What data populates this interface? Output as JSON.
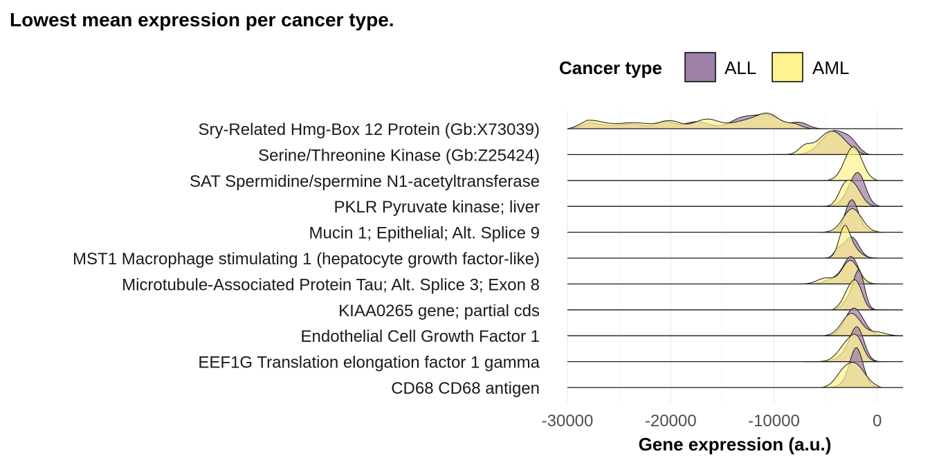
{
  "chart_data": {
    "type": "ridgeline",
    "title": "Lowest mean expression per cancer type.",
    "xlabel": "Gene expression (a.u.)",
    "ylabel": "",
    "xlim": [
      -30000,
      2500
    ],
    "xticks": [
      -30000,
      -20000,
      -10000,
      0
    ],
    "xtick_labels": [
      "-30000",
      "-20000",
      "-10000",
      "0"
    ],
    "grid": true,
    "legend": {
      "title": "Cancer type",
      "placement": "top-right",
      "entries": [
        {
          "name": "ALL",
          "color": "#9e7fa8"
        },
        {
          "name": "AML",
          "color": "#fff28f"
        }
      ]
    },
    "overlap_color": "#c8aa6a",
    "categories": [
      "Sry-Related Hmg-Box 12 Protein (Gb:X73039)",
      "Serine/Threonine Kinase (Gb:Z25424)",
      "SAT Spermidine/spermine N1-acetyltransferase",
      "PKLR Pyruvate kinase; liver",
      "Mucin 1; Epithelial; Alt. Splice 9",
      "MST1 Macrophage stimulating 1 (hepatocyte growth factor-like)",
      "Microtubule-Associated Protein Tau; Alt. Splice 3; Exon 8",
      "KIAA0265 gene; partial cds",
      "Endothelial Cell Growth Factor 1",
      "EEF1G Translation elongation factor 1 gamma",
      "CD68 CD68 antigen"
    ],
    "series": [
      {
        "name": "ALL",
        "color": "#9e7fa8",
        "ridges": [
          {
            "range": [
              -30000,
              -4000
            ],
            "peaks": [
              [
                -28000,
                1200,
                0.25
              ],
              [
                -24000,
                1500,
                0.2
              ],
              [
                -20500,
                800,
                0.3
              ],
              [
                -17500,
                1200,
                0.3
              ],
              [
                -13000,
                1200,
                0.45
              ],
              [
                -10500,
                1200,
                0.55
              ],
              [
                -7500,
                800,
                0.25
              ]
            ]
          },
          {
            "range": [
              -10000,
              -500
            ],
            "peaks": [
              [
                -4200,
                1200,
                1.0
              ],
              [
                -2500,
                700,
                0.35
              ]
            ]
          },
          {
            "range": [
              -3000,
              -1800
            ],
            "peaks": []
          },
          {
            "range": [
              -5500,
              500
            ],
            "peaks": [
              [
                -1800,
                700,
                1.3
              ],
              [
                -2800,
                700,
                0.35
              ]
            ]
          },
          {
            "range": [
              -5500,
              500
            ],
            "peaks": [
              [
                -2500,
                600,
                1.1
              ],
              [
                -2200,
                800,
                0.3
              ]
            ]
          },
          {
            "range": [
              -5000,
              0
            ],
            "peaks": [
              [
                -2500,
                700,
                0.9
              ],
              [
                -3800,
                400,
                0.3
              ]
            ]
          },
          {
            "range": [
              -7500,
              0
            ],
            "peaks": [
              [
                -2500,
                700,
                1.1
              ],
              [
                -4000,
                900,
                0.25
              ]
            ]
          },
          {
            "range": [
              -4500,
              1000
            ],
            "peaks": [
              [
                -1700,
                500,
                1.3
              ],
              [
                -2400,
                700,
                0.6
              ]
            ]
          },
          {
            "range": [
              -5500,
              2500
            ],
            "peaks": [
              [
                -2400,
                800,
                1.0
              ],
              [
                -1500,
                800,
                0.3
              ]
            ]
          },
          {
            "range": [
              -7000,
              500
            ],
            "peaks": [
              [
                -1900,
                650,
                1.2
              ],
              [
                -2700,
                900,
                0.4
              ]
            ]
          },
          {
            "range": [
              -5500,
              500
            ],
            "peaks": [
              [
                -2000,
                600,
                1.3
              ],
              [
                -2200,
                900,
                0.4
              ]
            ]
          }
        ]
      },
      {
        "name": "AML",
        "color": "#fff28f",
        "ridges": [
          {
            "range": [
              -30000,
              -6000
            ],
            "peaks": [
              [
                -28000,
                1500,
                0.35
              ],
              [
                -23500,
                1800,
                0.25
              ],
              [
                -20000,
                1000,
                0.3
              ],
              [
                -16500,
                1200,
                0.4
              ],
              [
                -12500,
                1500,
                0.35
              ],
              [
                -10500,
                1000,
                0.5
              ],
              [
                -8000,
                1000,
                0.2
              ]
            ]
          },
          {
            "range": [
              -10500,
              -1000
            ],
            "peaks": [
              [
                -4400,
                1300,
                1.0
              ],
              [
                -7000,
                600,
                0.3
              ]
            ]
          },
          {
            "range": [
              -5000,
              200
            ],
            "peaks": [
              [
                -2200,
                800,
                1.2
              ],
              [
                -2800,
                800,
                0.3
              ]
            ]
          },
          {
            "range": [
              -5500,
              500
            ],
            "peaks": [
              [
                -3200,
                600,
                0.7
              ],
              [
                -2200,
                700,
                0.8
              ]
            ]
          },
          {
            "range": [
              -5500,
              500
            ],
            "peaks": [
              [
                -2400,
                900,
                1.0
              ]
            ]
          },
          {
            "range": [
              -5500,
              500
            ],
            "peaks": [
              [
                -3200,
                500,
                1.0
              ],
              [
                -2600,
                800,
                0.5
              ]
            ]
          },
          {
            "range": [
              -7500,
              500
            ],
            "peaks": [
              [
                -2600,
                800,
                1.0
              ],
              [
                -5000,
                800,
                0.25
              ]
            ]
          },
          {
            "range": [
              -4500,
              500
            ],
            "peaks": [
              [
                -2500,
                700,
                1.0
              ],
              [
                -1800,
                500,
                0.5
              ]
            ]
          },
          {
            "range": [
              -5500,
              2500
            ],
            "peaks": [
              [
                -2500,
                900,
                0.95
              ],
              [
                0,
                800,
                0.15
              ]
            ]
          },
          {
            "range": [
              -7000,
              500
            ],
            "peaks": [
              [
                -2800,
                900,
                0.8
              ],
              [
                -1900,
                600,
                0.6
              ]
            ]
          },
          {
            "range": [
              -5500,
              500
            ],
            "peaks": [
              [
                -2200,
                1000,
                1.0
              ],
              [
                -3500,
                700,
                0.3
              ]
            ]
          }
        ]
      }
    ]
  }
}
